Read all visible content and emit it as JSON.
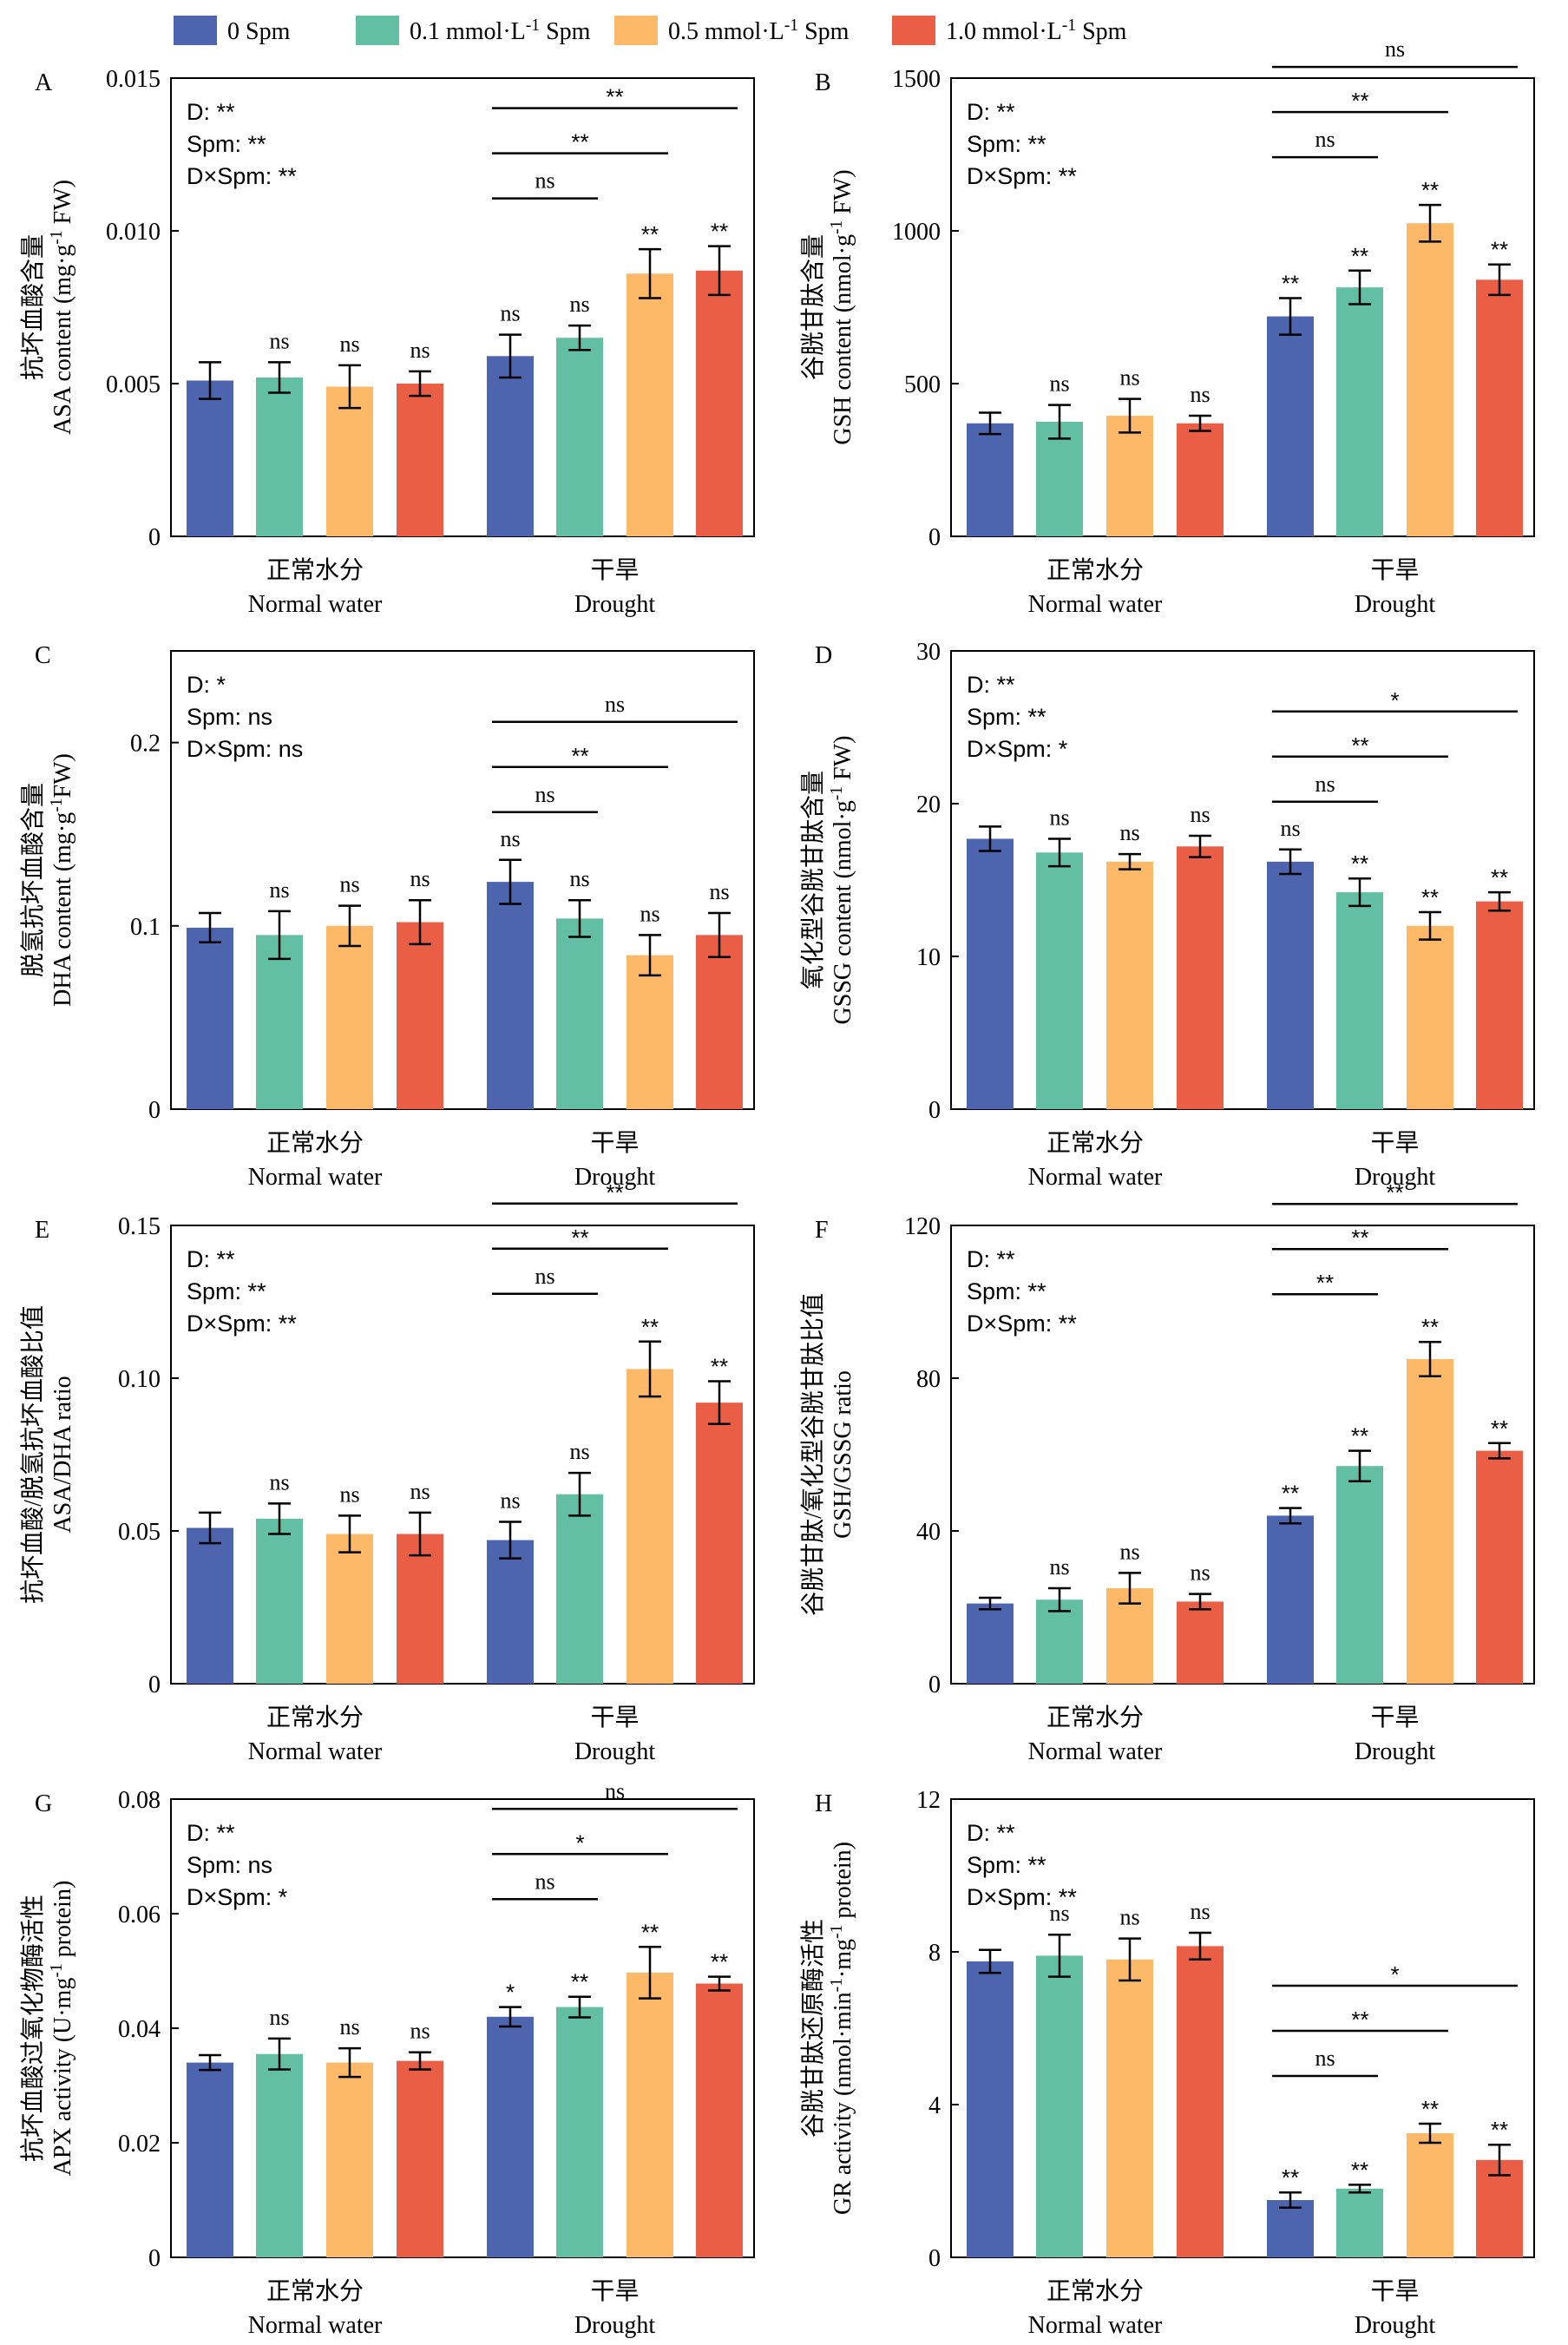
{
  "legend": [
    {
      "pre": "0  Spm",
      "sup": "",
      "post": "",
      "color": "#4C65AE"
    },
    {
      "pre": "0.1 mmol·L",
      "sup": "-1",
      "post": " Spm",
      "color": "#62BFA3"
    },
    {
      "pre": "0.5 mmol·L",
      "sup": "-1",
      "post": " Spm",
      "color": "#FDB868"
    },
    {
      "pre": "1.0 mmol·L",
      "sup": "-1",
      "post": " Spm",
      "color": "#EA5E45"
    }
  ],
  "groups": [
    {
      "cn": "正常水分",
      "en": "Normal water"
    },
    {
      "cn": "干旱",
      "en": "Drought"
    }
  ],
  "chart_data": [
    {
      "type": "bar",
      "panel": "A",
      "ylabel_cn": "抗坏血酸含量",
      "ylabel_en": [
        {
          "t": "ASA content (mg·g"
        },
        {
          "t": "-1",
          "sup": true
        },
        {
          "t": " FW)"
        }
      ],
      "ylim": [
        0,
        0.015
      ],
      "ticks": [
        {
          "v": 0,
          "label": "0"
        },
        {
          "v": 0.005,
          "label": "0.005"
        },
        {
          "v": 0.01,
          "label": "0.010"
        },
        {
          "v": 0.015,
          "label": "0.015"
        }
      ],
      "stats": [
        "D: **",
        "Spm: **",
        "D×Spm: **"
      ],
      "values": [
        [
          0.0051,
          0.0052,
          0.0049,
          0.005
        ],
        [
          0.0059,
          0.0065,
          0.0086,
          0.0087
        ]
      ],
      "errors": [
        [
          0.0006,
          0.0005,
          0.0007,
          0.0004
        ],
        [
          0.0007,
          0.0004,
          0.0008,
          0.0008
        ]
      ],
      "sig": [
        [
          "",
          "ns",
          "ns",
          "ns"
        ],
        [
          "ns",
          "ns",
          "**",
          "**"
        ]
      ],
      "comparisons": [
        {
          "to": 1,
          "label": "ns"
        },
        {
          "to": 2,
          "label": "**"
        },
        {
          "to": 3,
          "label": "**"
        }
      ]
    },
    {
      "type": "bar",
      "panel": "B",
      "ylabel_cn": "谷胱甘肽含量",
      "ylabel_en": [
        {
          "t": "GSH content (nmol·g"
        },
        {
          "t": "-1",
          "sup": true
        },
        {
          "t": " FW)"
        }
      ],
      "ylim": [
        0,
        1500
      ],
      "ticks": [
        {
          "v": 0,
          "label": "0"
        },
        {
          "v": 500,
          "label": "500"
        },
        {
          "v": 1000,
          "label": "1000"
        },
        {
          "v": 1500,
          "label": "1500"
        }
      ],
      "stats": [
        "D: **",
        "Spm: **",
        "D×Spm: **"
      ],
      "values": [
        [
          370,
          375,
          395,
          370
        ],
        [
          720,
          815,
          1025,
          840
        ]
      ],
      "errors": [
        [
          35,
          55,
          55,
          25
        ],
        [
          60,
          55,
          60,
          50
        ]
      ],
      "sig": [
        [
          "",
          "ns",
          "ns",
          "ns"
        ],
        [
          "**",
          "**",
          "**",
          "**"
        ]
      ],
      "comparisons": [
        {
          "to": 1,
          "label": "ns"
        },
        {
          "to": 2,
          "label": "**"
        },
        {
          "to": 3,
          "label": "ns"
        }
      ]
    },
    {
      "type": "bar",
      "panel": "C",
      "ylabel_cn": "脱氢抗坏血酸含量",
      "ylabel_en": [
        {
          "t": "DHA content (mg·g"
        },
        {
          "t": "-1",
          "sup": true
        },
        {
          "t": "FW)"
        }
      ],
      "ylim": [
        0,
        0.25
      ],
      "ticks": [
        {
          "v": 0,
          "label": "0"
        },
        {
          "v": 0.1,
          "label": "0.1"
        },
        {
          "v": 0.2,
          "label": "0.2"
        }
      ],
      "stats": [
        "D: *",
        "Spm: ns",
        "D×Spm: ns"
      ],
      "values": [
        [
          0.099,
          0.095,
          0.1,
          0.102
        ],
        [
          0.124,
          0.104,
          0.084,
          0.095
        ]
      ],
      "errors": [
        [
          0.008,
          0.013,
          0.011,
          0.012
        ],
        [
          0.012,
          0.01,
          0.011,
          0.012
        ]
      ],
      "sig": [
        [
          "",
          "ns",
          "ns",
          "ns"
        ],
        [
          "ns",
          "ns",
          "ns",
          "ns"
        ]
      ],
      "comparisons": [
        {
          "to": 1,
          "label": "ns"
        },
        {
          "to": 2,
          "label": "**"
        },
        {
          "to": 3,
          "label": "ns"
        }
      ]
    },
    {
      "type": "bar",
      "panel": "D",
      "ylabel_cn": "氧化型谷胱甘肽含量",
      "ylabel_en": [
        {
          "t": "GSSG content (nmol·g"
        },
        {
          "t": "-1",
          "sup": true
        },
        {
          "t": " FW)"
        }
      ],
      "ylim": [
        0,
        30
      ],
      "ticks": [
        {
          "v": 0,
          "label": "0"
        },
        {
          "v": 10,
          "label": "10"
        },
        {
          "v": 20,
          "label": "20"
        },
        {
          "v": 30,
          "label": "30"
        }
      ],
      "stats": [
        "D: **",
        "Spm: **",
        "D×Spm: *"
      ],
      "values": [
        [
          17.7,
          16.8,
          16.2,
          17.2
        ],
        [
          16.2,
          14.2,
          12.0,
          13.6
        ]
      ],
      "errors": [
        [
          0.8,
          0.9,
          0.5,
          0.7
        ],
        [
          0.8,
          0.9,
          0.9,
          0.6
        ]
      ],
      "sig": [
        [
          "",
          "ns",
          "ns",
          "ns"
        ],
        [
          "ns",
          "**",
          "**",
          "**"
        ]
      ],
      "comparisons": [
        {
          "to": 1,
          "label": "ns"
        },
        {
          "to": 2,
          "label": "**"
        },
        {
          "to": 3,
          "label": "*"
        }
      ]
    },
    {
      "type": "bar",
      "panel": "E",
      "ylabel_cn": "抗坏血酸/脱氢抗坏血酸比值",
      "ylabel_en": [
        {
          "t": "ASA/DHA ratio"
        }
      ],
      "ylim": [
        0,
        0.15
      ],
      "ticks": [
        {
          "v": 0,
          "label": "0"
        },
        {
          "v": 0.05,
          "label": "0.05"
        },
        {
          "v": 0.1,
          "label": "0.10"
        },
        {
          "v": 0.15,
          "label": "0.15"
        }
      ],
      "stats": [
        "D: **",
        "Spm: **",
        "D×Spm: **"
      ],
      "values": [
        [
          0.051,
          0.054,
          0.049,
          0.049
        ],
        [
          0.047,
          0.062,
          0.103,
          0.092
        ]
      ],
      "errors": [
        [
          0.005,
          0.005,
          0.006,
          0.007
        ],
        [
          0.006,
          0.007,
          0.009,
          0.007
        ]
      ],
      "sig": [
        [
          "",
          "ns",
          "ns",
          "ns"
        ],
        [
          "ns",
          "ns",
          "**",
          "**"
        ]
      ],
      "comparisons": [
        {
          "to": 1,
          "label": "ns"
        },
        {
          "to": 2,
          "label": "**"
        },
        {
          "to": 3,
          "label": "**"
        }
      ]
    },
    {
      "type": "bar",
      "panel": "F",
      "ylabel_cn": "谷胱甘肽/氧化型谷胱甘肽比值",
      "ylabel_en": [
        {
          "t": "GSH/GSSG ratio"
        }
      ],
      "ylim": [
        0,
        120
      ],
      "ticks": [
        {
          "v": 0,
          "label": "0"
        },
        {
          "v": 40,
          "label": "40"
        },
        {
          "v": 80,
          "label": "80"
        },
        {
          "v": 120,
          "label": "120"
        }
      ],
      "stats": [
        "D: **",
        "Spm: **",
        "D×Spm: **"
      ],
      "values": [
        [
          21,
          22,
          25,
          21.5
        ],
        [
          44,
          57,
          85,
          61
        ]
      ],
      "errors": [
        [
          1.5,
          3,
          4,
          2
        ],
        [
          2,
          4,
          4.5,
          2
        ]
      ],
      "sig": [
        [
          "",
          "ns",
          "ns",
          "ns"
        ],
        [
          "**",
          "**",
          "**",
          "**"
        ]
      ],
      "comparisons": [
        {
          "to": 1,
          "label": "**"
        },
        {
          "to": 2,
          "label": "**"
        },
        {
          "to": 3,
          "label": "**"
        }
      ]
    },
    {
      "type": "bar",
      "panel": "G",
      "ylabel_cn": "抗坏血酸过氧化物酶活性",
      "ylabel_en": [
        {
          "t": "APX activity (U·mg"
        },
        {
          "t": "-1",
          "sup": true
        },
        {
          "t": " protein)"
        }
      ],
      "ylim": [
        0,
        0.08
      ],
      "ticks": [
        {
          "v": 0,
          "label": "0"
        },
        {
          "v": 0.02,
          "label": "0.02"
        },
        {
          "v": 0.04,
          "label": "0.04"
        },
        {
          "v": 0.06,
          "label": "0.06"
        },
        {
          "v": 0.08,
          "label": "0.08"
        }
      ],
      "stats": [
        "D: **",
        "Spm: ns",
        "D×Spm: *"
      ],
      "values": [
        [
          0.034,
          0.0355,
          0.034,
          0.0343
        ],
        [
          0.042,
          0.0437,
          0.0497,
          0.0478
        ]
      ],
      "errors": [
        [
          0.0013,
          0.0027,
          0.0025,
          0.0015
        ],
        [
          0.0017,
          0.0018,
          0.0045,
          0.0012
        ]
      ],
      "sig": [
        [
          "",
          "ns",
          "ns",
          "ns"
        ],
        [
          "*",
          "**",
          "**",
          "**"
        ]
      ],
      "comparisons": [
        {
          "to": 1,
          "label": "ns"
        },
        {
          "to": 2,
          "label": "*"
        },
        {
          "to": 3,
          "label": "ns"
        }
      ]
    },
    {
      "type": "bar",
      "panel": "H",
      "ylabel_cn": "谷胱甘肽还原酶活性",
      "ylabel_en": [
        {
          "t": "GR activity (nmol·min"
        },
        {
          "t": "-1",
          "sup": true
        },
        {
          "t": "·mg"
        },
        {
          "t": "-1",
          "sup": true
        },
        {
          "t": " protein)"
        }
      ],
      "ylim": [
        0,
        12
      ],
      "ticks": [
        {
          "v": 0,
          "label": "0"
        },
        {
          "v": 4,
          "label": "4"
        },
        {
          "v": 8,
          "label": "8"
        },
        {
          "v": 12,
          "label": "12"
        }
      ],
      "stats": [
        "D: **",
        "Spm: **",
        "D×Spm: **"
      ],
      "values": [
        [
          7.75,
          7.9,
          7.8,
          8.15
        ],
        [
          1.5,
          1.8,
          3.25,
          2.55
        ]
      ],
      "errors": [
        [
          0.3,
          0.55,
          0.55,
          0.35
        ],
        [
          0.2,
          0.1,
          0.25,
          0.4
        ]
      ],
      "sig": [
        [
          "",
          "ns",
          "ns",
          "ns"
        ],
        [
          "**",
          "**",
          "**",
          "**"
        ]
      ],
      "comparisons": [
        {
          "to": 1,
          "label": "ns"
        },
        {
          "to": 2,
          "label": "**"
        },
        {
          "to": 3,
          "label": "*"
        }
      ]
    }
  ]
}
